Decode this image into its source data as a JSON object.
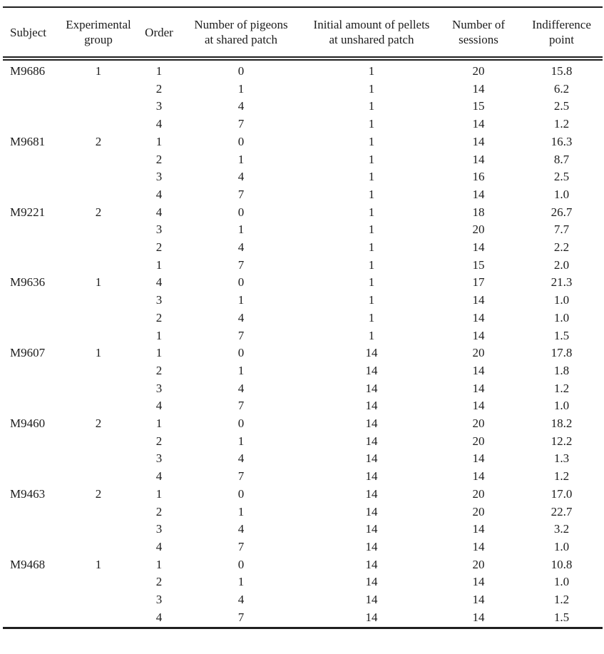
{
  "table": {
    "columns": [
      {
        "line1": "Subject",
        "line2": ""
      },
      {
        "line1": "Experimental",
        "line2": "group"
      },
      {
        "line1": "Order",
        "line2": ""
      },
      {
        "line1": "Number of pigeons",
        "line2": "at shared patch"
      },
      {
        "line1": "Initial amount of pellets",
        "line2": "at unshared patch"
      },
      {
        "line1": "Number of",
        "line2": "sessions"
      },
      {
        "line1": "Indifference",
        "line2": "point"
      }
    ],
    "rows": [
      [
        "M9686",
        "1",
        "1",
        "0",
        "1",
        "20",
        "15.8"
      ],
      [
        "",
        "",
        "2",
        "1",
        "1",
        "14",
        "6.2"
      ],
      [
        "",
        "",
        "3",
        "4",
        "1",
        "15",
        "2.5"
      ],
      [
        "",
        "",
        "4",
        "7",
        "1",
        "14",
        "1.2"
      ],
      [
        "M9681",
        "2",
        "1",
        "0",
        "1",
        "14",
        "16.3"
      ],
      [
        "",
        "",
        "2",
        "1",
        "1",
        "14",
        "8.7"
      ],
      [
        "",
        "",
        "3",
        "4",
        "1",
        "16",
        "2.5"
      ],
      [
        "",
        "",
        "4",
        "7",
        "1",
        "14",
        "1.0"
      ],
      [
        "M9221",
        "2",
        "4",
        "0",
        "1",
        "18",
        "26.7"
      ],
      [
        "",
        "",
        "3",
        "1",
        "1",
        "20",
        "7.7"
      ],
      [
        "",
        "",
        "2",
        "4",
        "1",
        "14",
        "2.2"
      ],
      [
        "",
        "",
        "1",
        "7",
        "1",
        "15",
        "2.0"
      ],
      [
        "M9636",
        "1",
        "4",
        "0",
        "1",
        "17",
        "21.3"
      ],
      [
        "",
        "",
        "3",
        "1",
        "1",
        "14",
        "1.0"
      ],
      [
        "",
        "",
        "2",
        "4",
        "1",
        "14",
        "1.0"
      ],
      [
        "",
        "",
        "1",
        "7",
        "1",
        "14",
        "1.5"
      ],
      [
        "M9607",
        "1",
        "1",
        "0",
        "14",
        "20",
        "17.8"
      ],
      [
        "",
        "",
        "2",
        "1",
        "14",
        "14",
        "1.8"
      ],
      [
        "",
        "",
        "3",
        "4",
        "14",
        "14",
        "1.2"
      ],
      [
        "",
        "",
        "4",
        "7",
        "14",
        "14",
        "1.0"
      ],
      [
        "M9460",
        "2",
        "1",
        "0",
        "14",
        "20",
        "18.2"
      ],
      [
        "",
        "",
        "2",
        "1",
        "14",
        "20",
        "12.2"
      ],
      [
        "",
        "",
        "3",
        "4",
        "14",
        "14",
        "1.3"
      ],
      [
        "",
        "",
        "4",
        "7",
        "14",
        "14",
        "1.2"
      ],
      [
        "M9463",
        "2",
        "1",
        "0",
        "14",
        "20",
        "17.0"
      ],
      [
        "",
        "",
        "2",
        "1",
        "14",
        "20",
        "22.7"
      ],
      [
        "",
        "",
        "3",
        "4",
        "14",
        "14",
        "3.2"
      ],
      [
        "",
        "",
        "4",
        "7",
        "14",
        "14",
        "1.0"
      ],
      [
        "M9468",
        "1",
        "1",
        "0",
        "14",
        "20",
        "10.8"
      ],
      [
        "",
        "",
        "2",
        "1",
        "14",
        "14",
        "1.0"
      ],
      [
        "",
        "",
        "3",
        "4",
        "14",
        "14",
        "1.2"
      ],
      [
        "",
        "",
        "4",
        "7",
        "14",
        "14",
        "1.5"
      ]
    ]
  }
}
